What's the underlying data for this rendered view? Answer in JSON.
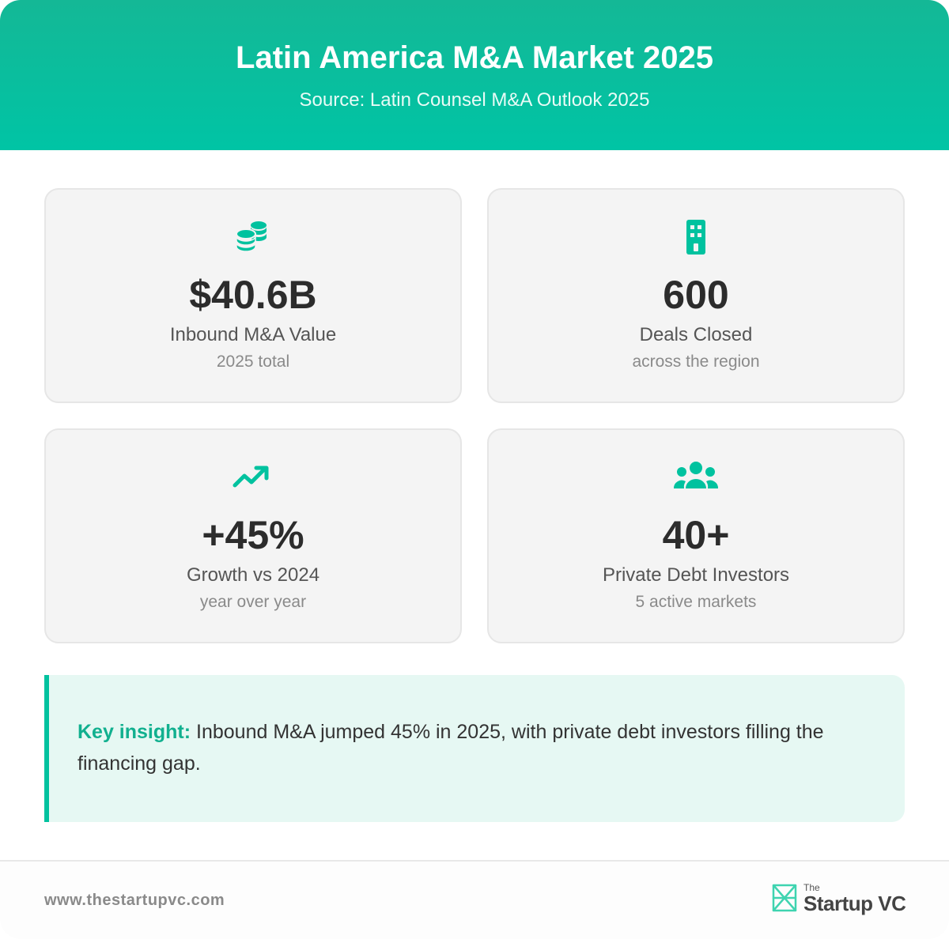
{
  "header": {
    "title": "Latin America M&A Market 2025",
    "subtitle": "Source: Latin Counsel M&A Outlook 2025"
  },
  "accent_color": "#00c4a5",
  "cards": [
    {
      "icon": "coins-icon",
      "value": "$40.6B",
      "label": "Inbound M&A Value",
      "sublabel": "2025 total"
    },
    {
      "icon": "building-icon",
      "value": "600",
      "label": "Deals Closed",
      "sublabel": "across the region"
    },
    {
      "icon": "trending-up-icon",
      "value": "+45%",
      "label": "Growth vs 2024",
      "sublabel": "year over year"
    },
    {
      "icon": "users-icon",
      "value": "40+",
      "label": "Private Debt Investors",
      "sublabel": "5 active markets"
    }
  ],
  "insight": {
    "lead": "Key insight:",
    "text": " Inbound M&A jumped 45% in 2025, with private debt investors filling the financing gap."
  },
  "footer": {
    "url": "www.thestartupvc.com",
    "logo_prefix": "The",
    "logo_name": "Startup VC"
  }
}
